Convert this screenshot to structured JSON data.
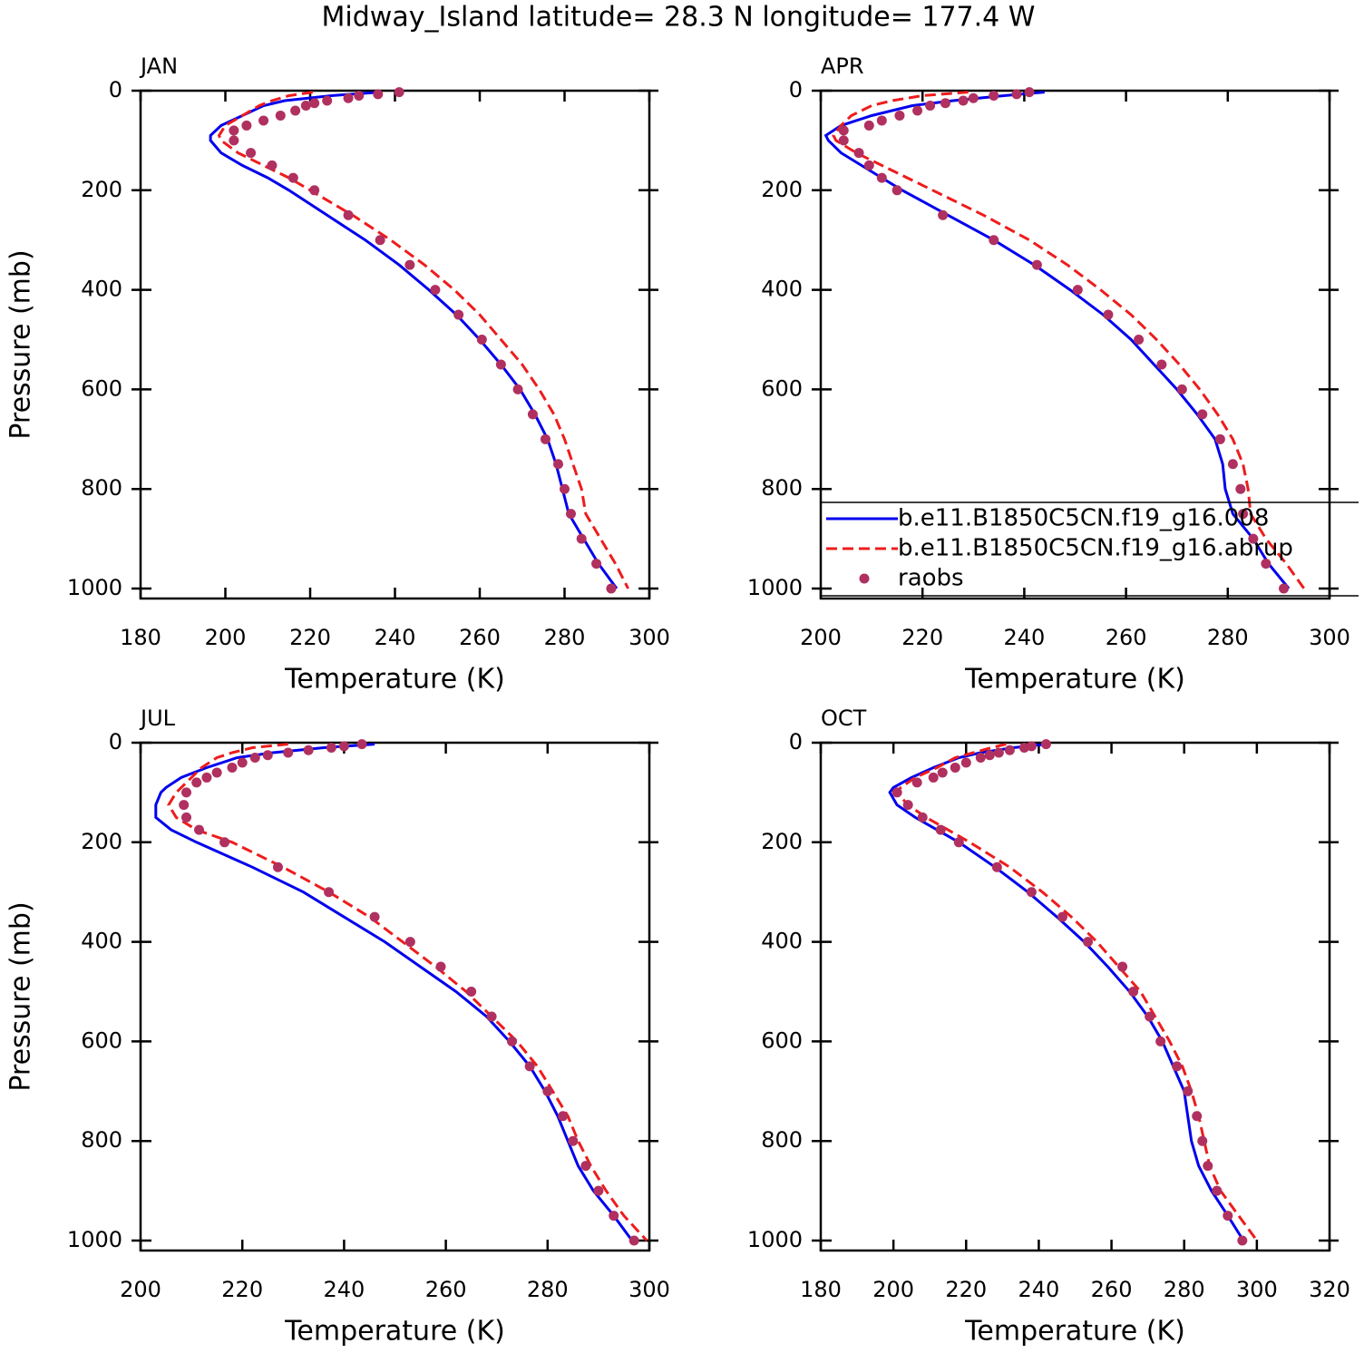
{
  "title": "Midway_Island  latitude= 28.3 N longitude= 177.4 W",
  "chart_data": [
    {
      "type": "line",
      "title": "JAN",
      "xlabel": "Temperature (K)",
      "ylabel": "Pressure (mb)",
      "xlim": [
        180,
        300
      ],
      "xticks": [
        180,
        200,
        220,
        240,
        260,
        280,
        300
      ],
      "ylim": [
        1020,
        0
      ],
      "yticks": [
        0,
        200,
        400,
        600,
        800,
        1000
      ],
      "series": [
        {
          "color": "#0000ee",
          "style": "solid",
          "x": [
            236.5,
            225,
            214,
            209,
            204,
            199,
            196.5,
            196.5,
            199,
            204,
            210,
            215,
            224,
            233,
            241,
            248,
            254.5,
            260,
            265,
            269.5,
            273,
            276,
            278,
            279.5,
            281,
            284.5,
            288,
            292.3
          ],
          "y": [
            3,
            10,
            20,
            30,
            50,
            70,
            90,
            100,
            125,
            150,
            175,
            200,
            250,
            300,
            350,
            400,
            450,
            500,
            550,
            600,
            650,
            700,
            750,
            800,
            850,
            900,
            950,
            1000
          ]
        },
        {
          "color": "#ee1c1c",
          "style": "dashed",
          "x": [
            220.6,
            215,
            211,
            208,
            204,
            200,
            198.5,
            199,
            203,
            209,
            215,
            220,
            230,
            239,
            247,
            254,
            260,
            265,
            270,
            274,
            277.5,
            280,
            282,
            284,
            285,
            288.5,
            292,
            295
          ],
          "y": [
            3,
            10,
            20,
            30,
            50,
            70,
            90,
            100,
            125,
            150,
            175,
            200,
            250,
            300,
            350,
            400,
            450,
            500,
            550,
            600,
            650,
            700,
            750,
            800,
            850,
            900,
            950,
            1000
          ]
        },
        {
          "color": "#b03060",
          "style": "dots",
          "x": [
            241,
            236,
            231.5,
            229,
            224,
            221,
            219,
            216.5,
            213,
            209,
            205,
            202,
            202,
            206,
            211,
            216,
            221,
            229,
            236.5,
            243.5,
            249.5,
            255,
            260.5,
            265,
            269,
            272.5,
            275.5,
            278.5,
            280,
            281.5,
            284,
            287.5,
            291
          ],
          "y": [
            3,
            7,
            10,
            15,
            20,
            25,
            30,
            40,
            50,
            60,
            70,
            80,
            100,
            125,
            150,
            175,
            200,
            250,
            300,
            350,
            400,
            450,
            500,
            550,
            600,
            650,
            700,
            750,
            800,
            850,
            900,
            950,
            1000
          ]
        }
      ]
    },
    {
      "type": "line",
      "title": "APR",
      "xlabel": "Temperature (K)",
      "legend": true,
      "xlim": [
        200,
        300
      ],
      "xticks": [
        200,
        220,
        240,
        260,
        280,
        300
      ],
      "ylim": [
        1020,
        0
      ],
      "yticks": [
        0,
        200,
        400,
        600,
        800,
        1000
      ],
      "series": [
        {
          "name": "b.e11.B1850C5CN.f19_g16.008",
          "color": "#0000ee",
          "style": "solid",
          "x": [
            244,
            236,
            226,
            218,
            210,
            204,
            201,
            201.5,
            204,
            208,
            212,
            216,
            225,
            234,
            242,
            249,
            255.5,
            261,
            265.5,
            270,
            274,
            277.5,
            279,
            279.5,
            281,
            285,
            288,
            292
          ],
          "y": [
            3,
            10,
            20,
            30,
            50,
            70,
            90,
            100,
            125,
            150,
            175,
            200,
            250,
            300,
            350,
            400,
            450,
            500,
            550,
            600,
            650,
            700,
            750,
            800,
            850,
            900,
            950,
            1000
          ]
        },
        {
          "name": "b.e11.B1850C5CN.f19_g16.abrup",
          "color": "#ee1c1c",
          "style": "dashed",
          "x": [
            229,
            220,
            214,
            210,
            206,
            204,
            202.5,
            203,
            207,
            212,
            217,
            222,
            232,
            241,
            248.5,
            255,
            261,
            266,
            270.5,
            274.5,
            278,
            281,
            283,
            284,
            284.5,
            287.5,
            291.5,
            295
          ],
          "y": [
            3,
            10,
            20,
            30,
            50,
            70,
            90,
            100,
            125,
            150,
            175,
            200,
            250,
            300,
            350,
            400,
            450,
            500,
            550,
            600,
            650,
            700,
            750,
            800,
            850,
            900,
            950,
            1000
          ]
        },
        {
          "name": "raobs",
          "color": "#b03060",
          "style": "dots",
          "x": [
            241,
            238.5,
            234,
            230,
            228,
            224.5,
            221.5,
            219,
            215.5,
            212,
            209.5,
            204.5,
            204.5,
            207.5,
            209.5,
            212,
            215,
            224,
            234,
            242.5,
            250.5,
            256.5,
            262.5,
            267,
            271,
            275,
            278.5,
            281,
            282.5,
            283,
            285,
            287.5,
            291
          ],
          "y": [
            3,
            7,
            10,
            15,
            20,
            25,
            30,
            40,
            50,
            60,
            70,
            80,
            100,
            125,
            150,
            175,
            200,
            250,
            300,
            350,
            400,
            450,
            500,
            550,
            600,
            650,
            700,
            750,
            800,
            850,
            900,
            950,
            1000
          ]
        }
      ]
    },
    {
      "type": "line",
      "title": "JUL",
      "xlabel": "Temperature (K)",
      "ylabel": "Pressure (mb)",
      "xlim": [
        200,
        300
      ],
      "xticks": [
        200,
        220,
        240,
        260,
        280,
        300
      ],
      "ylim": [
        1020,
        0
      ],
      "yticks": [
        0,
        200,
        400,
        600,
        800,
        1000
      ],
      "series": [
        {
          "color": "#0000ee",
          "style": "solid",
          "x": [
            246,
            236,
            226,
            219,
            213,
            208,
            205,
            204,
            203,
            203,
            206,
            211,
            222,
            232,
            240,
            248,
            255,
            262,
            268,
            272.5,
            276.5,
            279.5,
            282,
            284,
            286,
            289,
            293,
            296.6
          ],
          "y": [
            3,
            10,
            20,
            30,
            50,
            70,
            90,
            100,
            125,
            150,
            175,
            200,
            250,
            300,
            350,
            400,
            450,
            500,
            550,
            600,
            650,
            700,
            750,
            800,
            850,
            900,
            950,
            1000
          ]
        },
        {
          "color": "#ee1c1c",
          "style": "dashed",
          "x": [
            229,
            222,
            218,
            215,
            212,
            210,
            208,
            207,
            205.5,
            207,
            211,
            218,
            228,
            237,
            245,
            251.5,
            258,
            264,
            269,
            274,
            278,
            281,
            284,
            286,
            288.5,
            291.5,
            295,
            299.5
          ],
          "y": [
            3,
            10,
            20,
            30,
            50,
            70,
            90,
            100,
            125,
            150,
            175,
            200,
            250,
            300,
            350,
            400,
            450,
            500,
            550,
            600,
            650,
            700,
            750,
            800,
            850,
            900,
            950,
            1000
          ]
        },
        {
          "color": "#b03060",
          "style": "dots",
          "x": [
            243.5,
            240,
            237.5,
            233,
            229,
            225,
            222.5,
            220,
            218,
            215,
            213,
            211,
            209,
            208.5,
            209,
            211.5,
            216.5,
            227,
            237,
            246,
            253,
            259,
            265,
            269,
            273,
            276.5,
            280,
            283,
            285,
            287.5,
            290,
            293,
            297
          ],
          "y": [
            3,
            7,
            10,
            15,
            20,
            25,
            30,
            40,
            50,
            60,
            70,
            80,
            100,
            125,
            150,
            175,
            200,
            250,
            300,
            350,
            400,
            450,
            500,
            550,
            600,
            650,
            700,
            750,
            800,
            850,
            900,
            950,
            1000
          ]
        }
      ]
    },
    {
      "type": "line",
      "title": "OCT",
      "xlabel": "Temperature (K)",
      "xlim": [
        180,
        320
      ],
      "xticks": [
        180,
        200,
        220,
        240,
        260,
        280,
        300,
        320
      ],
      "ylim": [
        1020,
        0
      ],
      "yticks": [
        0,
        200,
        400,
        600,
        800,
        1000
      ],
      "series": [
        {
          "color": "#0000ee",
          "style": "solid",
          "x": [
            242,
            233,
            224,
            218,
            211,
            205,
            200,
            199,
            201,
            206,
            212,
            218,
            228,
            237,
            245,
            252.5,
            259,
            265,
            270,
            274,
            277,
            280,
            281,
            282,
            284,
            287.5,
            292,
            296.3
          ],
          "y": [
            3,
            10,
            20,
            30,
            50,
            70,
            90,
            100,
            125,
            150,
            175,
            200,
            250,
            300,
            350,
            400,
            450,
            500,
            550,
            600,
            650,
            700,
            750,
            800,
            850,
            900,
            950,
            1000
          ]
        },
        {
          "color": "#ee1c1c",
          "style": "dashed",
          "x": [
            231,
            227,
            222,
            217,
            212,
            206,
            202,
            201,
            204,
            209,
            215,
            221,
            232,
            241,
            249,
            256,
            262,
            268,
            272,
            276,
            279.5,
            282,
            284,
            285.5,
            287,
            290,
            295,
            300
          ],
          "y": [
            3,
            10,
            20,
            30,
            50,
            70,
            90,
            100,
            125,
            150,
            175,
            200,
            250,
            300,
            350,
            400,
            450,
            500,
            550,
            600,
            650,
            700,
            750,
            800,
            850,
            900,
            950,
            1000
          ]
        },
        {
          "color": "#b03060",
          "style": "dots",
          "x": [
            242,
            238,
            236,
            232,
            229,
            226.5,
            224,
            220,
            217,
            213.5,
            211,
            206.5,
            201,
            204,
            208,
            213,
            218,
            228.5,
            238,
            246.5,
            253.5,
            263,
            266,
            270.5,
            273.5,
            278,
            281,
            283.5,
            285,
            286.5,
            289,
            292,
            296
          ],
          "y": [
            3,
            7,
            10,
            15,
            20,
            25,
            30,
            40,
            50,
            60,
            70,
            80,
            100,
            125,
            150,
            175,
            200,
            250,
            300,
            350,
            400,
            450,
            500,
            550,
            600,
            650,
            700,
            750,
            800,
            850,
            900,
            950,
            1000
          ]
        }
      ]
    }
  ]
}
